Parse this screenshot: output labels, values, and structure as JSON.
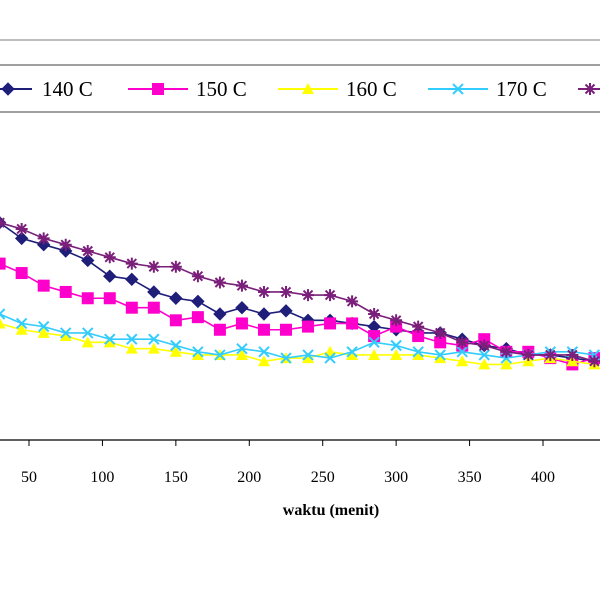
{
  "chart_data": {
    "type": "line",
    "title": "",
    "xlabel": "waktu (menit)",
    "ylabel": "",
    "xlim": [
      30,
      440
    ],
    "ylim": [
      0,
      1
    ],
    "x_ticks": [
      50,
      100,
      150,
      200,
      250,
      300,
      350,
      400
    ],
    "grid": false,
    "legend_position": "top",
    "series": [
      {
        "name": "140 C",
        "color": "#1f1f7a",
        "marker": "diamond",
        "x": [
          30,
          45,
          60,
          75,
          90,
          105,
          120,
          135,
          150,
          165,
          180,
          195,
          210,
          225,
          240,
          255,
          270,
          285,
          300,
          315,
          330,
          345,
          360,
          375,
          390,
          405,
          420,
          435
        ],
        "y": [
          0.69,
          0.64,
          0.62,
          0.6,
          0.57,
          0.52,
          0.51,
          0.47,
          0.45,
          0.44,
          0.4,
          0.42,
          0.4,
          0.41,
          0.38,
          0.38,
          0.37,
          0.36,
          0.35,
          0.34,
          0.34,
          0.32,
          0.3,
          0.29,
          0.27,
          0.27,
          0.26,
          0.25
        ]
      },
      {
        "name": "150 C",
        "color": "#ff00cc",
        "marker": "square",
        "x": [
          30,
          45,
          60,
          75,
          90,
          105,
          120,
          135,
          150,
          165,
          180,
          195,
          210,
          225,
          240,
          255,
          270,
          285,
          300,
          315,
          330,
          345,
          360,
          375,
          390,
          405,
          420,
          435
        ],
        "y": [
          0.56,
          0.53,
          0.49,
          0.47,
          0.45,
          0.45,
          0.42,
          0.42,
          0.38,
          0.39,
          0.35,
          0.37,
          0.35,
          0.35,
          0.36,
          0.37,
          0.37,
          0.33,
          0.36,
          0.33,
          0.31,
          0.3,
          0.32,
          0.28,
          0.28,
          0.26,
          0.24,
          0.26
        ]
      },
      {
        "name": "160 C",
        "color": "#ffff00",
        "marker": "triangle",
        "x": [
          30,
          45,
          60,
          75,
          90,
          105,
          120,
          135,
          150,
          165,
          180,
          195,
          210,
          225,
          240,
          255,
          270,
          285,
          300,
          315,
          330,
          345,
          360,
          375,
          390,
          405,
          420,
          435
        ],
        "y": [
          0.37,
          0.35,
          0.34,
          0.33,
          0.31,
          0.31,
          0.29,
          0.29,
          0.28,
          0.27,
          0.27,
          0.27,
          0.25,
          0.26,
          0.26,
          0.28,
          0.27,
          0.27,
          0.27,
          0.27,
          0.26,
          0.25,
          0.24,
          0.24,
          0.25,
          0.26,
          0.25,
          0.24
        ]
      },
      {
        "name": "170 C",
        "color": "#33ccff",
        "marker": "x",
        "x": [
          30,
          45,
          60,
          75,
          90,
          105,
          120,
          135,
          150,
          165,
          180,
          195,
          210,
          225,
          240,
          255,
          270,
          285,
          300,
          315,
          330,
          345,
          360,
          375,
          390,
          405,
          420,
          435
        ],
        "y": [
          0.4,
          0.37,
          0.36,
          0.34,
          0.34,
          0.32,
          0.32,
          0.32,
          0.3,
          0.28,
          0.27,
          0.29,
          0.28,
          0.26,
          0.27,
          0.26,
          0.28,
          0.31,
          0.3,
          0.28,
          0.27,
          0.28,
          0.27,
          0.26,
          0.27,
          0.28,
          0.28,
          0.27
        ]
      },
      {
        "name": "",
        "color": "#7a1f7a",
        "marker": "asterisk",
        "x": [
          30,
          45,
          60,
          75,
          90,
          105,
          120,
          135,
          150,
          165,
          180,
          195,
          210,
          225,
          240,
          255,
          270,
          285,
          300,
          315,
          330,
          345,
          360,
          375,
          390,
          405,
          420,
          435
        ],
        "y": [
          0.69,
          0.67,
          0.64,
          0.62,
          0.6,
          0.58,
          0.56,
          0.55,
          0.55,
          0.52,
          0.5,
          0.49,
          0.47,
          0.47,
          0.46,
          0.46,
          0.44,
          0.4,
          0.38,
          0.36,
          0.34,
          0.31,
          0.3,
          0.28,
          0.27,
          0.27,
          0.27,
          0.25
        ]
      }
    ]
  }
}
